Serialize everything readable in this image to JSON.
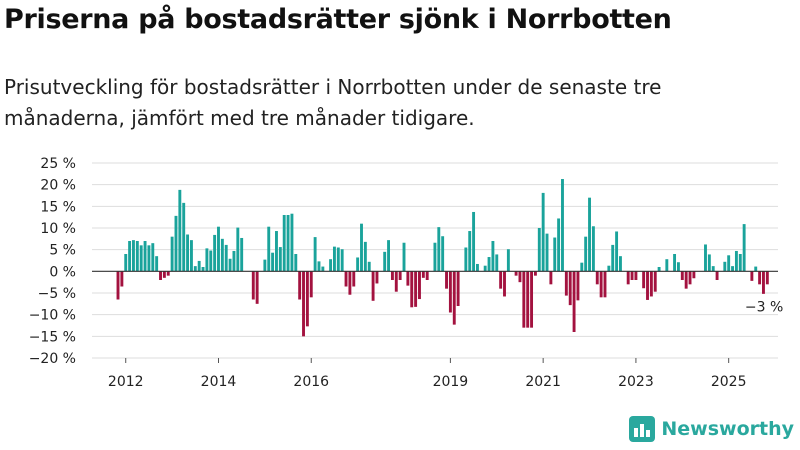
{
  "title": "Priserna på bostadsrätter sjönk i Norrbotten",
  "subtitle": "Prisutveckling för bostadsrätter i Norrbotten under de senaste tre månaderna, jämfört med tre månader tidigare.",
  "brand": {
    "name": "Newsworthy",
    "logo_icon": "bar-chart-logo-icon"
  },
  "colors": {
    "positive": "#1aa39b",
    "negative": "#a3123f",
    "grid": "#dddddd",
    "zero": "#333333"
  },
  "chart_data": {
    "type": "bar",
    "title": "Priserna på bostadsrätter sjönk i Norrbotten",
    "xlabel": "",
    "ylabel": "",
    "ylim": [
      -20,
      25
    ],
    "y_ticks": [
      25,
      20,
      15,
      10,
      5,
      0,
      -5,
      -10,
      -15,
      -20
    ],
    "y_tick_labels": [
      "25 %",
      "20 %",
      "15 %",
      "10 %",
      "5 %",
      "0 %",
      "−5 %",
      "−10 %",
      "−15 %",
      "−20 %"
    ],
    "x_ticks": [
      {
        "label": "2012",
        "year": 2012
      },
      {
        "label": "2014",
        "year": 2014
      },
      {
        "label": "2016",
        "year": 2016
      },
      {
        "label": "2019",
        "year": 2019
      },
      {
        "label": "2021",
        "year": 2021
      },
      {
        "label": "2023",
        "year": 2023
      },
      {
        "label": "2025",
        "year": 2025
      }
    ],
    "start": "2011-11",
    "end": "2025-06",
    "grid": true,
    "values": [
      -6.5,
      -3.5,
      4,
      7,
      7.2,
      7,
      6,
      7,
      6,
      6.5,
      3.5,
      -2,
      -1.5,
      -1,
      8,
      12.8,
      18.8,
      15.8,
      8.5,
      7.2,
      1.2,
      2.4,
      1,
      5.3,
      4.8,
      8.4,
      10.3,
      7.5,
      6.1,
      2.9,
      4.7,
      10.1,
      7.7,
      0,
      0,
      -6.5,
      -7.5,
      0,
      2.7,
      10.3,
      4.3,
      9.3,
      5.6,
      13,
      13,
      13.3,
      4,
      -6.5,
      -15,
      -12.7,
      -6,
      7.9,
      2.3,
      1.1,
      0,
      2.8,
      5.7,
      5.5,
      5.1,
      -3.5,
      -5.4,
      -3.5,
      3.2,
      11,
      6.8,
      2.2,
      -6.8,
      -2.8,
      0,
      4.5,
      7.2,
      -2,
      -4.7,
      -2,
      6.6,
      -3.3,
      -8.3,
      -8.2,
      -6.4,
      -1.5,
      -2,
      0,
      6.6,
      10.2,
      8.1,
      -4,
      -9.5,
      -12.3,
      -8,
      0,
      5.5,
      9.3,
      13.7,
      1.7,
      0,
      1.3,
      3.3,
      7,
      3.9,
      -4,
      -5.8,
      5.1,
      0,
      -1,
      -2.5,
      -13,
      -13,
      -13,
      -1,
      10,
      18.1,
      8.7,
      -3,
      7.8,
      12.2,
      21.3,
      -5.6,
      -7.8,
      -14,
      -6.7,
      2,
      8,
      17,
      10.4,
      -3,
      -6,
      -6,
      1.3,
      6.1,
      9.2,
      3.5,
      0,
      -3,
      -2,
      -2,
      0,
      -3.9,
      -6.6,
      -5.8,
      -4.7,
      1,
      0,
      2.8,
      0,
      4,
      2.1,
      -2,
      -4,
      -3,
      -1.6,
      0,
      0,
      6.2,
      3.9,
      1.2,
      -2,
      0,
      2.2,
      3.7,
      1.2,
      4.7,
      4,
      10.9,
      0,
      -2.2,
      1.1,
      -3,
      -5.2,
      -3
    ],
    "annotations": [
      {
        "text": "−3 %",
        "label_for": "last_value"
      }
    ]
  }
}
